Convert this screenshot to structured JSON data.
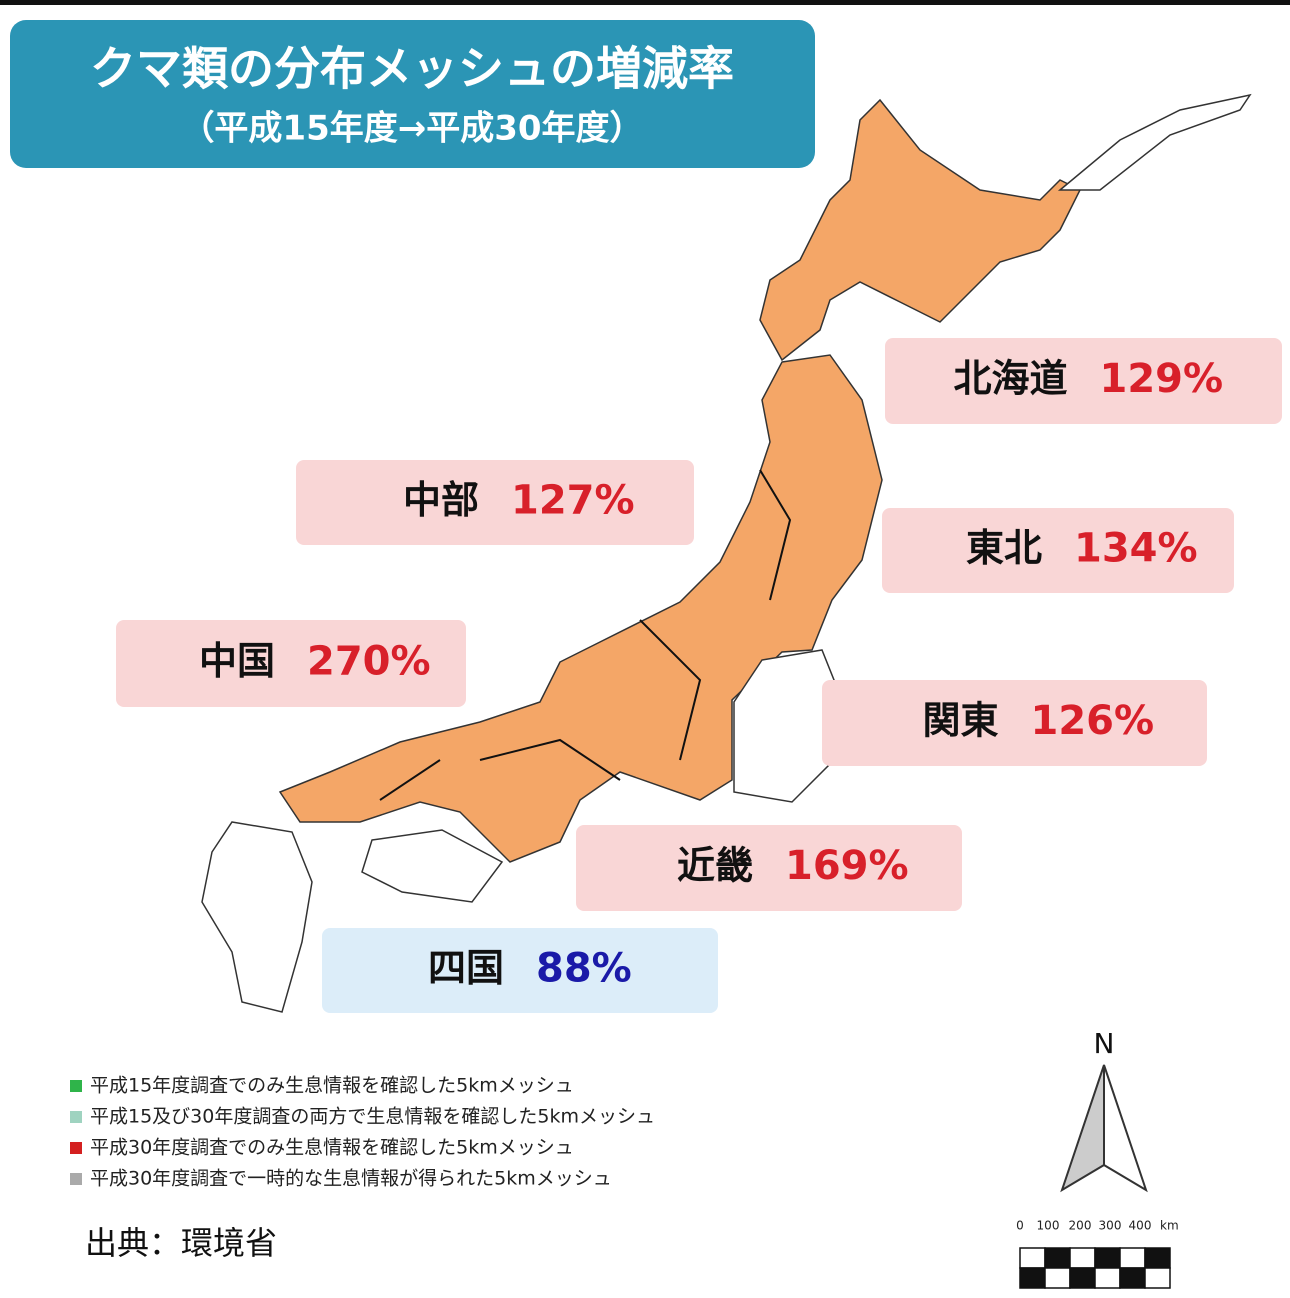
{
  "title": {
    "line1": "クマ類の分布メッシュの増減率",
    "line2": "（平成15年度→平成30年度）"
  },
  "regions": [
    {
      "name": "北海道",
      "rate": "129%",
      "box_color": "#f9d6d6",
      "rate_color": "#d8202a"
    },
    {
      "name": "中部",
      "rate": "127%",
      "box_color": "#f9d6d6",
      "rate_color": "#d8202a"
    },
    {
      "name": "東北",
      "rate": "134%",
      "box_color": "#f9d6d6",
      "rate_color": "#d8202a"
    },
    {
      "name": "中国",
      "rate": "270%",
      "box_color": "#f9d6d6",
      "rate_color": "#d8202a"
    },
    {
      "name": "関東",
      "rate": "126%",
      "box_color": "#f9d6d6",
      "rate_color": "#d8202a"
    },
    {
      "name": "近畿",
      "rate": "169%",
      "box_color": "#f9d6d6",
      "rate_color": "#d8202a"
    },
    {
      "name": "四国",
      "rate": "88%",
      "box_color": "#dcedf9",
      "rate_color": "#1a1aa8"
    }
  ],
  "legend": [
    {
      "text": "平成15年度調査でのみ生息情報を確認した5kmメッシュ",
      "color": "#2fb44a"
    },
    {
      "text": "平成15及び30年度調査の両方で生息情報を確認した5kmメッシュ",
      "color": "#9fd3c0"
    },
    {
      "text": "平成30年度調査でのみ生息情報を確認した5kmメッシュ",
      "color": "#d42020"
    },
    {
      "text": "平成30年度調査で一時的な生息情報が得られた5kmメッシュ",
      "color": "#aaaaaa"
    }
  ],
  "source": "出典：環境省",
  "compass": "N",
  "scale": {
    "ticks": [
      "0",
      "100",
      "200",
      "300",
      "400"
    ],
    "unit": "km"
  }
}
